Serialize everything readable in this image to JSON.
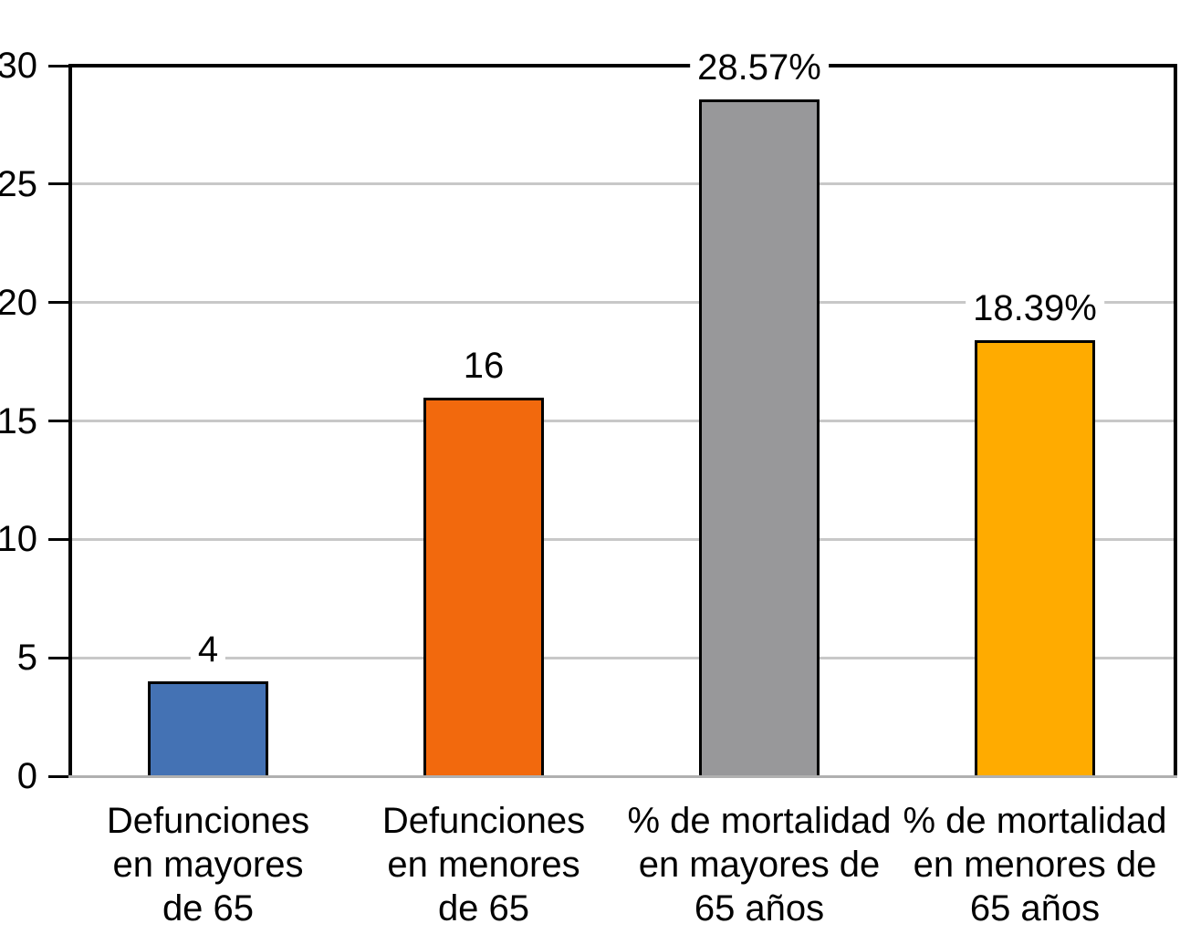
{
  "chart_data": {
    "type": "bar",
    "title": "",
    "xlabel": "",
    "ylabel": "",
    "categories": [
      [
        "Defunciones",
        "en mayores",
        "de 65"
      ],
      [
        "Defunciones",
        "en menores",
        "de 65"
      ],
      [
        "% de mortalidad",
        "en mayores de",
        "65 años"
      ],
      [
        "% de mortalidad",
        "en menores de",
        "65 años"
      ]
    ],
    "values": [
      4,
      16,
      28.57,
      18.39
    ],
    "value_labels": [
      "4",
      "16",
      "28.57%",
      "18.39%"
    ],
    "bar_colors": [
      "#4472B4",
      "#F2690D",
      "#98989A",
      "#FFAB00"
    ],
    "yticks": [
      0,
      5,
      10,
      15,
      20,
      25,
      30
    ],
    "ylim": [
      0,
      30
    ],
    "grid": true,
    "legend": false,
    "colors": {
      "axis": "#000000",
      "gridline": "#C8C8C8",
      "baseline": "#B0B0B0",
      "bar_border": "#000000",
      "text": "#000000",
      "background": "#FFFFFF"
    }
  }
}
